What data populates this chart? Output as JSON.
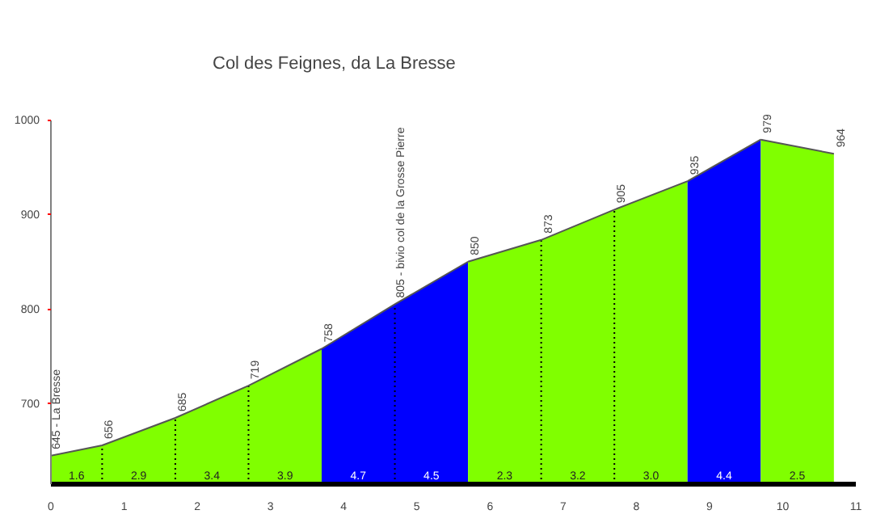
{
  "chart_data": {
    "type": "area",
    "title": "Col des Feignes, da La Bresse",
    "series": [
      {
        "color": "#80ff00",
        "x": [
          0,
          0.7,
          1.7,
          2.7,
          3.7
        ],
        "values": [
          645,
          656,
          685,
          719,
          758
        ],
        "value_labels": [
          "645 - La Bresse",
          "656",
          "685",
          "719",
          "758"
        ]
      },
      {
        "color": "#0000ff",
        "x": [
          3.7,
          4.7,
          5.7
        ],
        "values": [
          758,
          805,
          850
        ],
        "value_labels": [
          null,
          "805 - bivio col de la Grosse Pierre",
          null
        ]
      },
      {
        "color": "#80ff00",
        "x": [
          5.7,
          6.7,
          7.7,
          8.7
        ],
        "values": [
          850,
          873,
          905,
          935
        ],
        "value_labels": [
          "850",
          "873",
          "905",
          "935"
        ]
      },
      {
        "color": "#0000ff",
        "x": [
          8.7,
          9.7
        ],
        "values": [
          935,
          979
        ],
        "value_labels": [
          null,
          "979"
        ]
      },
      {
        "color": "#80ff00",
        "x": [
          9.7,
          10.7
        ],
        "values": [
          979,
          964
        ],
        "value_labels": [
          null,
          "964"
        ]
      }
    ],
    "annotations": [
      "1.6",
      "2.9",
      "3.4",
      "3.9",
      "4.7",
      "4.5",
      "2.3",
      "3.2",
      "3.0",
      "4.4",
      "2.5"
    ],
    "xlim": [
      0,
      11
    ],
    "ylim": [
      615,
      1000
    ],
    "xticks": [
      0,
      1,
      2,
      3,
      4,
      5,
      6,
      7,
      8,
      9,
      10,
      11
    ],
    "yticks": [
      700,
      800,
      900,
      1000
    ],
    "grid": false
  }
}
